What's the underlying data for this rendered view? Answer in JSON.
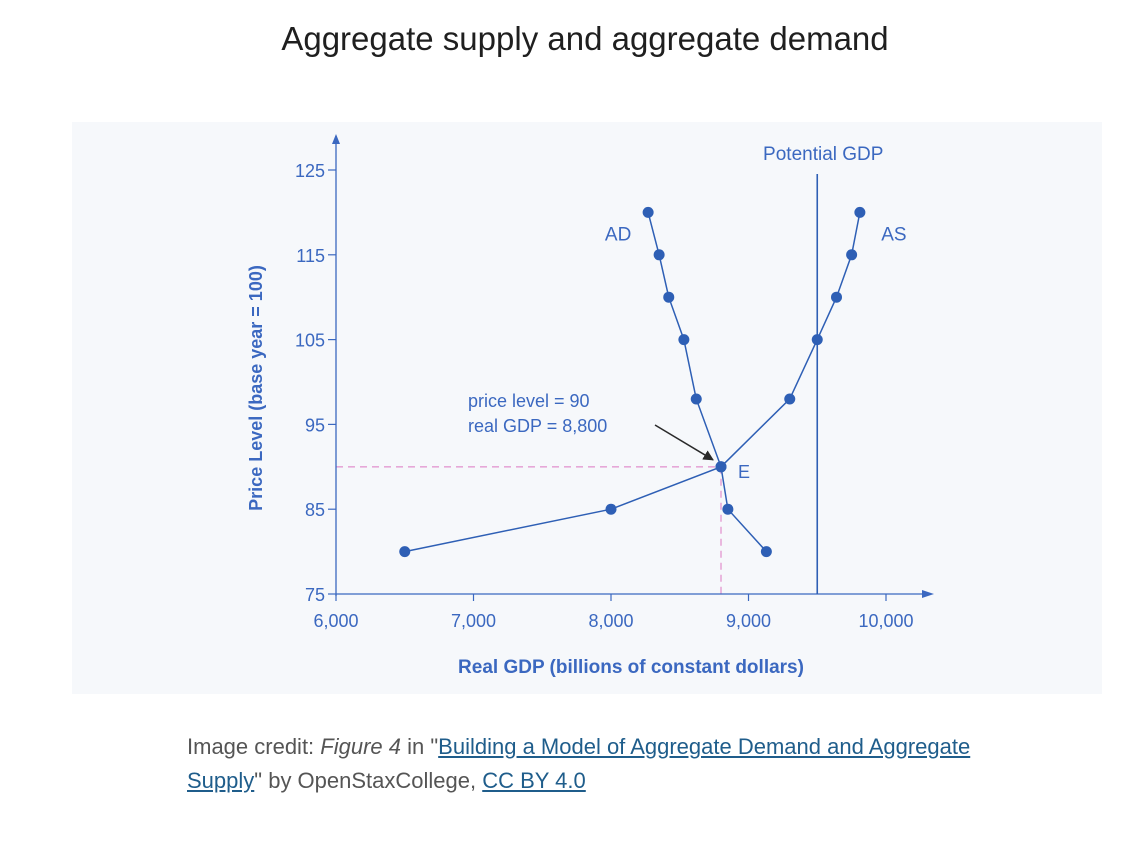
{
  "page_title": "Aggregate supply and aggregate demand",
  "caption": {
    "prefix": "Image credit: ",
    "figure_ref": "Figure 4",
    "in_text": " in \"",
    "link_text": "Building a Model of Aggregate Demand and Aggregate Supply",
    "after_link": "\" by OpenStaxCollege, ",
    "license_text": "CC BY 4.0"
  },
  "colors": {
    "series": "#2e5fb5",
    "axis": "#3b68c0",
    "text": "#3b68c0",
    "guides": "#e6a8d8",
    "panel": "#f6f8fb"
  },
  "chart_data": {
    "type": "line",
    "title": "",
    "xlabel": "Real GDP (billions of constant dollars)",
    "ylabel": "Price Level (base year = 100)",
    "xlim": [
      6000,
      10000
    ],
    "ylim": [
      75,
      125
    ],
    "xticks": [
      6000,
      7000,
      8000,
      9000,
      10000
    ],
    "xtick_labels": [
      "6,000",
      "7,000",
      "8,000",
      "9,000",
      "10,000"
    ],
    "yticks": [
      75,
      85,
      95,
      105,
      115,
      125
    ],
    "ytick_labels": [
      "75",
      "85",
      "95",
      "105",
      "115",
      "125"
    ],
    "series": [
      {
        "name": "AD",
        "points": [
          [
            8270,
            120
          ],
          [
            8350,
            115
          ],
          [
            8420,
            110
          ],
          [
            8530,
            105
          ],
          [
            8620,
            98
          ],
          [
            8800,
            90
          ],
          [
            8850,
            85
          ],
          [
            9130,
            80
          ]
        ]
      },
      {
        "name": "AS",
        "points": [
          [
            6500,
            80
          ],
          [
            8000,
            85
          ],
          [
            8800,
            90
          ],
          [
            9300,
            98
          ],
          [
            9500,
            105
          ],
          [
            9640,
            110
          ],
          [
            9750,
            115
          ],
          [
            9810,
            120
          ]
        ]
      }
    ],
    "vertical_line": {
      "label": "Potential GDP",
      "x": 9500
    },
    "equilibrium": {
      "label": "E",
      "x": 8800,
      "y": 90,
      "annotation": [
        "price level = 90",
        "real GDP = 8,800"
      ]
    }
  }
}
